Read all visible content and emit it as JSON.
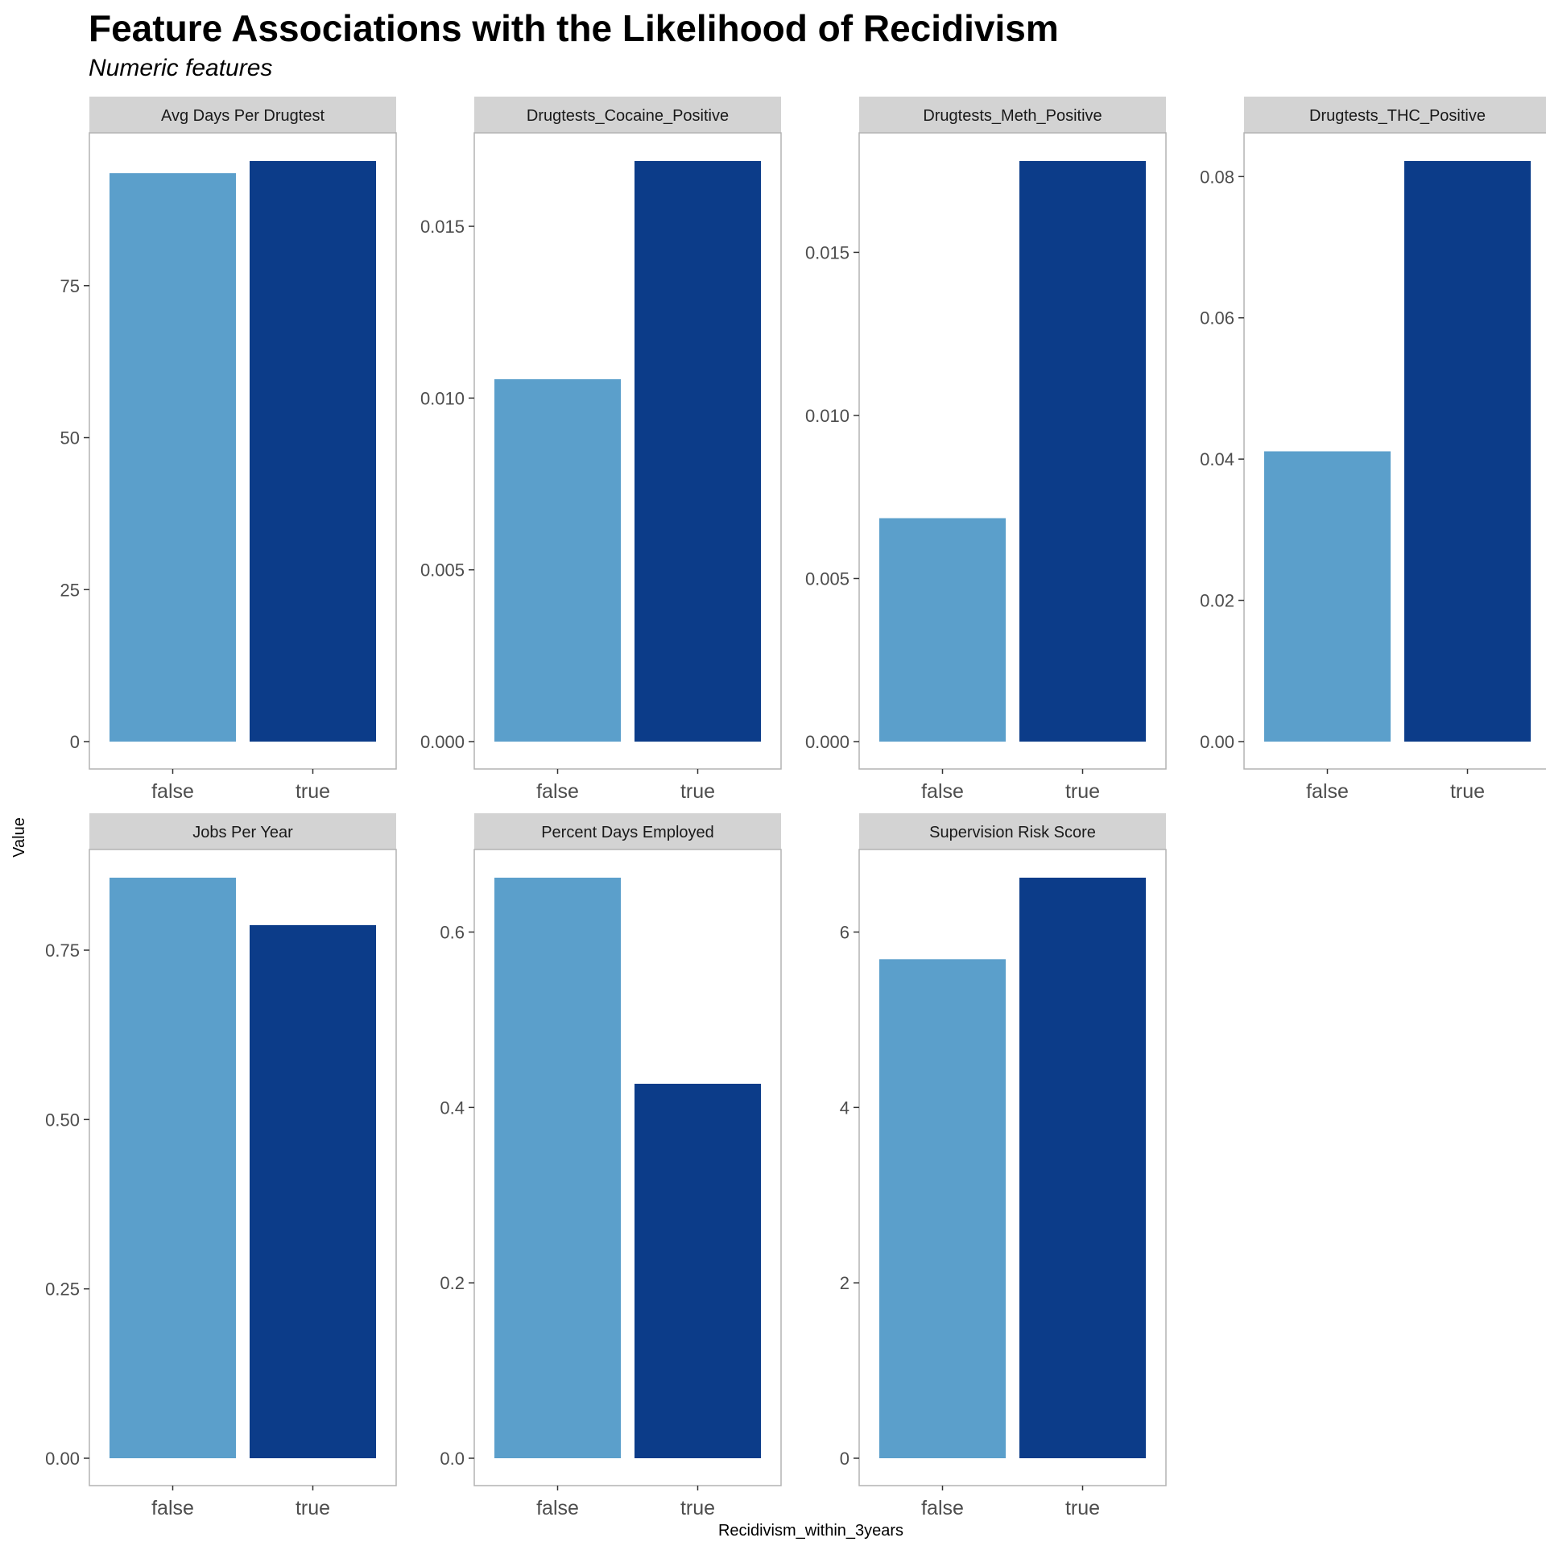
{
  "title": "Feature Associations with the Likelihood of Recidivism",
  "subtitle": "Numeric features",
  "xlabel": "Recidivism_within_3years",
  "ylabel": "Value",
  "colors": {
    "false": "#5b9fcb",
    "true": "#0c3c89",
    "strip_bg": "#d3d3d3",
    "panel_border": "#b3b3b3"
  },
  "chart_data": [
    {
      "type": "bar",
      "facet": "Avg Days Per Drugtest",
      "categories": [
        "false",
        "true"
      ],
      "values": [
        93.5,
        95.5
      ],
      "ylim": [
        0,
        95.5
      ],
      "yticks": [
        "0",
        "25",
        "50",
        "75"
      ],
      "ytick_values": [
        0,
        25,
        50,
        75
      ]
    },
    {
      "type": "bar",
      "facet": "Drugtests_Cocaine_Positive",
      "categories": [
        "false",
        "true"
      ],
      "values": [
        0.01055,
        0.0169
      ],
      "ylim": [
        0,
        0.0169
      ],
      "yticks": [
        "0.000",
        "0.005",
        "0.010",
        "0.015"
      ],
      "ytick_values": [
        0,
        0.005,
        0.01,
        0.015
      ]
    },
    {
      "type": "bar",
      "facet": "Drugtests_Meth_Positive",
      "categories": [
        "false",
        "true"
      ],
      "values": [
        0.00685,
        0.0178
      ],
      "ylim": [
        0,
        0.0178
      ],
      "yticks": [
        "0.000",
        "0.005",
        "0.010",
        "0.015"
      ],
      "ytick_values": [
        0,
        0.005,
        0.01,
        0.015
      ]
    },
    {
      "type": "bar",
      "facet": "Drugtests_THC_Positive",
      "categories": [
        "false",
        "true"
      ],
      "values": [
        0.0411,
        0.0822
      ],
      "ylim": [
        0,
        0.0822
      ],
      "yticks": [
        "0.00",
        "0.02",
        "0.04",
        "0.06",
        "0.08"
      ],
      "ytick_values": [
        0,
        0.02,
        0.04,
        0.06,
        0.08
      ]
    },
    {
      "type": "bar",
      "facet": "Jobs Per Year",
      "categories": [
        "false",
        "true"
      ],
      "values": [
        0.857,
        0.787
      ],
      "ylim": [
        0,
        0.857
      ],
      "yticks": [
        "0.00",
        "0.25",
        "0.50",
        "0.75"
      ],
      "ytick_values": [
        0,
        0.25,
        0.5,
        0.75
      ]
    },
    {
      "type": "bar",
      "facet": "Percent Days Employed",
      "categories": [
        "false",
        "true"
      ],
      "values": [
        0.662,
        0.427
      ],
      "ylim": [
        0,
        0.662
      ],
      "yticks": [
        "0.0",
        "0.2",
        "0.4",
        "0.6"
      ],
      "ytick_values": [
        0,
        0.2,
        0.4,
        0.6
      ]
    },
    {
      "type": "bar",
      "facet": "Supervision Risk Score",
      "categories": [
        "false",
        "true"
      ],
      "values": [
        5.69,
        6.62
      ],
      "ylim": [
        0,
        6.62
      ],
      "yticks": [
        "0",
        "2",
        "4",
        "6"
      ],
      "ytick_values": [
        0,
        2,
        4,
        6
      ]
    }
  ]
}
